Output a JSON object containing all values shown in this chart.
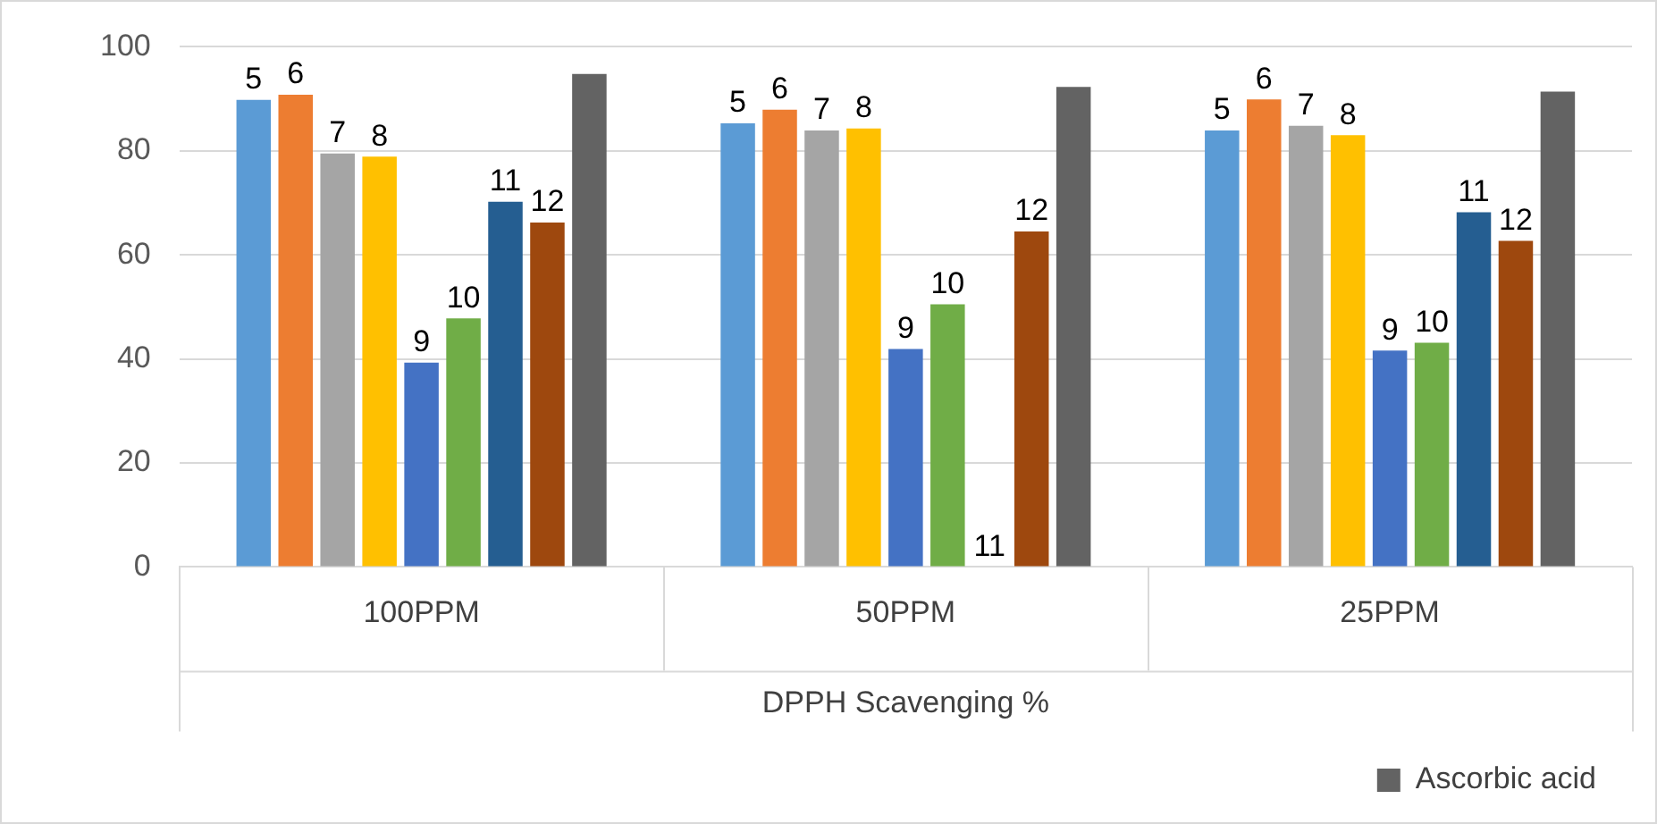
{
  "chart_data": {
    "type": "bar",
    "xlabel": "DPPH Scavenging %",
    "categories": [
      "100PPM",
      "50PPM",
      "25PPM"
    ],
    "series": [
      {
        "name": "5",
        "color": "#5b9bd5",
        "values": [
          89.8,
          85.3,
          83.9
        ]
      },
      {
        "name": "6",
        "color": "#ed7d31",
        "values": [
          90.8,
          87.9,
          89.9
        ]
      },
      {
        "name": "7",
        "color": "#a5a5a5",
        "values": [
          79.5,
          83.9,
          84.8
        ]
      },
      {
        "name": "8",
        "color": "#ffc000",
        "values": [
          78.9,
          84.3,
          83.0
        ]
      },
      {
        "name": "9",
        "color": "#4472c4",
        "values": [
          39.3,
          41.9,
          41.6
        ]
      },
      {
        "name": "10",
        "color": "#70ad47",
        "values": [
          47.8,
          50.5,
          43.1
        ]
      },
      {
        "name": "11",
        "color": "#255e91",
        "values": [
          70.2,
          null,
          68.2
        ]
      },
      {
        "name": "12",
        "color": "#9e480e",
        "values": [
          66.2,
          64.5,
          62.7
        ]
      },
      {
        "name": "Ascorbic acid",
        "color": "#636363",
        "values": [
          94.8,
          92.3,
          91.4
        ]
      }
    ],
    "ylim": [
      0,
      100
    ],
    "yticks": [
      0,
      20,
      40,
      60,
      80,
      100
    ],
    "grid": "y",
    "legend": "bottom right"
  }
}
